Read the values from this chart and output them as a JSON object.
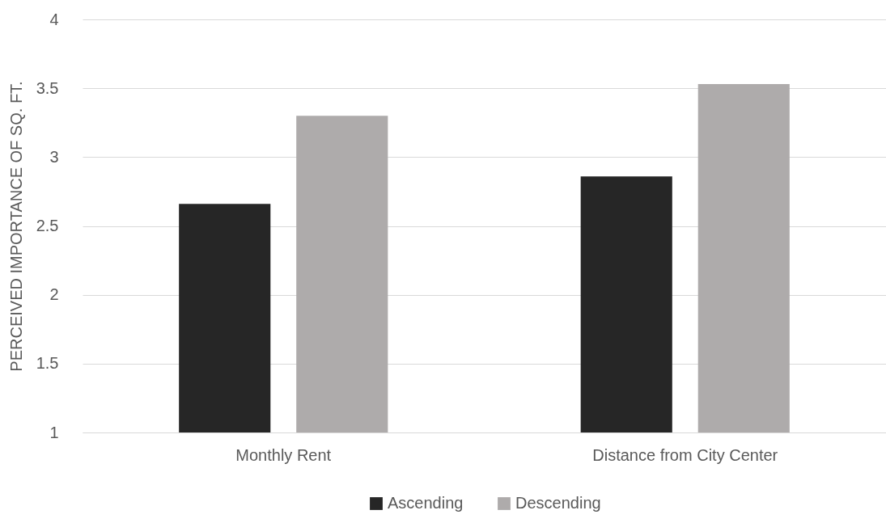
{
  "chart_data": {
    "type": "bar",
    "ylabel": "PERCEIVED IMPORTANCE OF SQ. FT.",
    "categories": [
      "Monthly Rent",
      "Distance from City Center"
    ],
    "series": [
      {
        "name": "Ascending",
        "color": "#262626",
        "values": [
          2.66,
          2.86
        ]
      },
      {
        "name": "Descending",
        "color": "#aeabab",
        "values": [
          3.3,
          3.53
        ]
      }
    ],
    "ylim": [
      1,
      4
    ],
    "yticks": [
      1,
      1.5,
      2,
      2.5,
      3,
      3.5,
      4
    ],
    "grid": "y",
    "legend": "bottom"
  }
}
